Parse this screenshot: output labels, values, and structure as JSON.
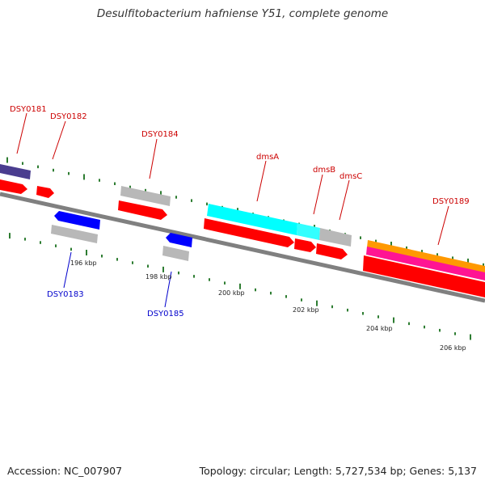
{
  "title": "Desulfitobacterium hafniense Y51, complete genome",
  "footer": {
    "accession": "Accession: NC_007907",
    "summary": "Topology: circular; Length: 5,727,534 bp; Genes: 5,137"
  },
  "axis_unit": "kbp",
  "scale_ticks": [
    "196 kbp",
    "198 kbp",
    "200 kbp",
    "202 kbp",
    "204 kbp",
    "206 kbp"
  ],
  "colors": {
    "background": "#ffffff",
    "backbone": "#808080",
    "tick": "#2e7d32",
    "top_strand_label": "#cc0000",
    "bottom_strand_label": "#0000cc",
    "cds": "#ff0000",
    "gene_grey": "#b8b8b8",
    "gene_blue": "#0000ff",
    "gene_purple": "#4a3d8f",
    "gene_cyan": "#00ffff",
    "gene_orange": "#ff9900",
    "gene_magenta": "#ff1493"
  },
  "genes": [
    {
      "label": "DSY0181",
      "strand": "top"
    },
    {
      "label": "DSY0182",
      "strand": "top"
    },
    {
      "label": "DSY0183",
      "strand": "bottom"
    },
    {
      "label": "DSY0184",
      "strand": "top"
    },
    {
      "label": "DSY0185",
      "strand": "bottom"
    },
    {
      "label": "dmsA",
      "strand": "top"
    },
    {
      "label": "dmsB",
      "strand": "top"
    },
    {
      "label": "dmsC",
      "strand": "top"
    },
    {
      "label": "DSY0189",
      "strand": "top"
    }
  ]
}
